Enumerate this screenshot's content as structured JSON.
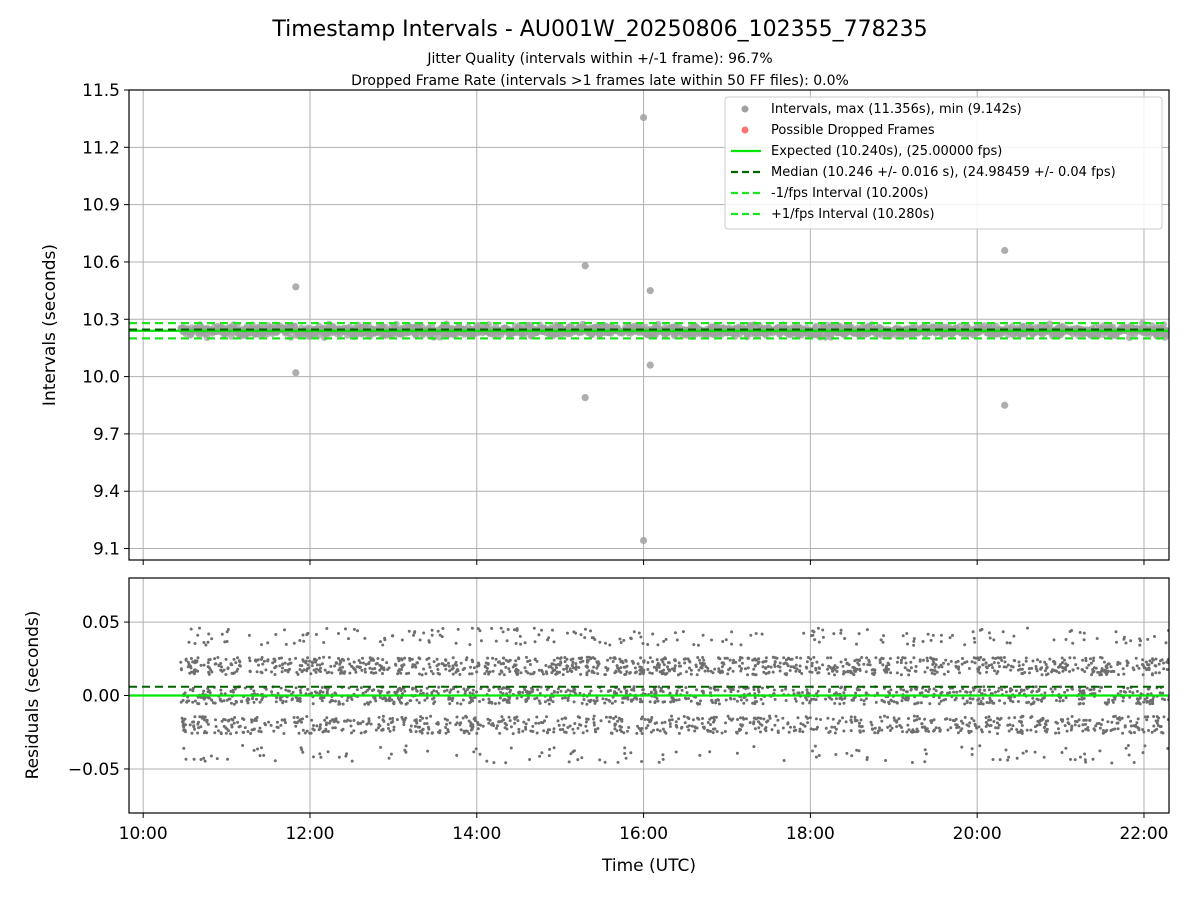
{
  "chart_data": [
    {
      "type": "scatter",
      "title": "Timestamp Intervals - AU001W_20250806_102355_778235",
      "subtitle_lines": [
        "Jitter Quality (intervals within +/-1 frame): 96.7%",
        "Dropped Frame Rate (intervals >1 frames late within 50 FF files): 0.0%"
      ],
      "ylabel": "Intervals (seconds)",
      "ylim": [
        9.04,
        11.5
      ],
      "xlim_hours": [
        9.83,
        22.3
      ],
      "yticks": [
        "9.1",
        "9.4",
        "9.7",
        "10.0",
        "10.3",
        "10.6",
        "10.9",
        "11.2",
        "11.5"
      ],
      "ytick_values": [
        9.1,
        9.4,
        9.7,
        10.0,
        10.3,
        10.6,
        10.9,
        11.2,
        11.5
      ],
      "grid": true,
      "legend_position": "top-right",
      "legend": [
        "Intervals, max (11.356s), min (9.142s)",
        "Possible Dropped Frames",
        "Expected (10.240s), (25.00000 fps)",
        "Median (10.246 +/- 0.016 s), (24.98459 +/- 0.04 fps)",
        "-1/fps Interval (10.200s)",
        "+1/fps Interval (10.280s)"
      ],
      "reference_lines": {
        "expected": 10.24,
        "median": 10.246,
        "minus_one_fps": 10.2,
        "plus_one_fps": 10.28
      },
      "band": {
        "center": 10.24,
        "spread": 0.03,
        "x_start_hours": 10.45,
        "x_end_hours": 22.3
      },
      "outliers": [
        {
          "x": 11.83,
          "y": 10.47
        },
        {
          "x": 11.83,
          "y": 10.02
        },
        {
          "x": 15.3,
          "y": 10.58
        },
        {
          "x": 15.3,
          "y": 9.89
        },
        {
          "x": 16.0,
          "y": 11.356
        },
        {
          "x": 16.0,
          "y": 9.142
        },
        {
          "x": 16.08,
          "y": 10.45
        },
        {
          "x": 16.08,
          "y": 10.06
        },
        {
          "x": 20.33,
          "y": 10.66
        },
        {
          "x": 20.33,
          "y": 9.85
        }
      ],
      "colors": {
        "intervals": "#a0a0a0",
        "dropped": "#ff5a5a",
        "expected": "#00e600",
        "median": "#006400",
        "fps_bounds": "#1ee61e"
      }
    },
    {
      "type": "scatter",
      "xlabel": "Time (UTC)",
      "ylabel": "Residuals (seconds)",
      "ylim": [
        -0.08,
        0.08
      ],
      "yticks": [
        "−0.05",
        "0.00",
        "0.05"
      ],
      "ytick_values": [
        -0.05,
        0.0,
        0.05
      ],
      "xticks": [
        "10:00",
        "12:00",
        "14:00",
        "16:00",
        "18:00",
        "20:00",
        "22:00"
      ],
      "xtick_values": [
        10,
        12,
        14,
        16,
        18,
        20,
        22
      ],
      "grid": true,
      "median_residual": 0.006,
      "expected_residual": 0.0,
      "residual_levels": [
        0.02,
        0.0,
        -0.02,
        0.04,
        -0.04
      ],
      "point_color": "#6e6e6e"
    }
  ]
}
